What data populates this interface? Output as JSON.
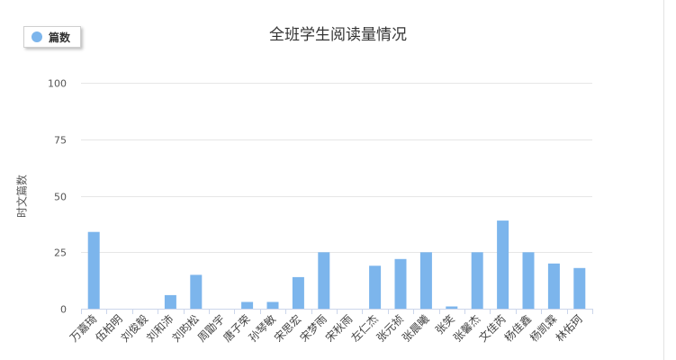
{
  "chart_data": {
    "type": "bar",
    "title": "全班学生阅读量情况",
    "ylabel": "时文篇数",
    "xlabel": "",
    "ylim": [
      0,
      100
    ],
    "yticks": [
      0,
      25,
      50,
      75,
      100
    ],
    "grid": true,
    "legend_position": "top-left",
    "categories": [
      "万嘉琦",
      "伍柏明",
      "刘俊毅",
      "刘和沛",
      "刘昀松",
      "周勖宇",
      "唐子荣",
      "孙琴敏",
      "宋思宏",
      "宋梦雨",
      "宋秋雨",
      "左仁杰",
      "张元祯",
      "张晨曦",
      "张笑",
      "张馨杰",
      "文佳芮",
      "杨佳鑫",
      "杨凯霖",
      "林佑珂"
    ],
    "series": [
      {
        "name": "篇数",
        "color": "#7cb5ec",
        "values": [
          34,
          0,
          0,
          6,
          15,
          0,
          3,
          3,
          14,
          25,
          0,
          19,
          22,
          25,
          1,
          25,
          39,
          25,
          20,
          18
        ]
      }
    ]
  }
}
